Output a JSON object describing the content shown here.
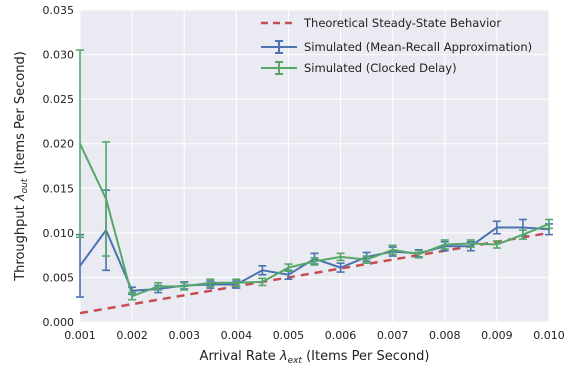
{
  "chart_data": {
    "type": "line",
    "xlabel_prefix": "Arrival Rate ",
    "xlabel_sym": "λ",
    "xlabel_sub": "ext",
    "xlabel_suffix": " (Items Per Second)",
    "ylabel_prefix": "Throughput ",
    "ylabel_sym": "λ",
    "ylabel_sub": "out",
    "ylabel_suffix": " (Items Per Second)",
    "xlim": [
      0.001,
      0.01
    ],
    "ylim": [
      0.0,
      0.035
    ],
    "xticks": [
      "0.001",
      "0.002",
      "0.003",
      "0.004",
      "0.005",
      "0.006",
      "0.007",
      "0.008",
      "0.009",
      "0.010"
    ],
    "yticks": [
      "0.000",
      "0.005",
      "0.010",
      "0.015",
      "0.020",
      "0.025",
      "0.030",
      "0.035"
    ],
    "grid": true,
    "legend_position": "top-right",
    "colors": {
      "theory": "#c44e52",
      "mean_recall": "#4c72b0",
      "clocked": "#55a868",
      "plot_bg": "#eaeaf2",
      "grid": "#ffffff"
    },
    "series": [
      {
        "name": "Theoretical Steady-State Behavior",
        "style": "dashed",
        "x": [
          0.001,
          0.01
        ],
        "y": [
          0.001,
          0.01
        ]
      },
      {
        "name": "Simulated (Mean-Recall Approximation)",
        "style": "errorbar",
        "x": [
          0.001,
          0.0015,
          0.002,
          0.0025,
          0.003,
          0.0035,
          0.004,
          0.0045,
          0.005,
          0.0055,
          0.006,
          0.0065,
          0.007,
          0.0075,
          0.008,
          0.0085,
          0.009,
          0.0095,
          0.01
        ],
        "y": [
          0.0063,
          0.0103,
          0.0035,
          0.0037,
          0.0041,
          0.0042,
          0.0042,
          0.0058,
          0.0053,
          0.0071,
          0.0061,
          0.0073,
          0.0079,
          0.0077,
          0.0085,
          0.0085,
          0.0106,
          0.0106,
          0.0104
        ],
        "err": [
          0.0035,
          0.0045,
          0.0004,
          0.0004,
          0.0004,
          0.0004,
          0.0004,
          0.0005,
          0.0005,
          0.0006,
          0.0005,
          0.0005,
          0.0005,
          0.0004,
          0.0005,
          0.0005,
          0.0007,
          0.0009,
          0.0006
        ]
      },
      {
        "name": "Simulated (Clocked Delay)",
        "style": "errorbar",
        "x": [
          0.001,
          0.0015,
          0.002,
          0.0025,
          0.003,
          0.0035,
          0.004,
          0.0045,
          0.005,
          0.0055,
          0.006,
          0.0065,
          0.007,
          0.0075,
          0.008,
          0.0085,
          0.009,
          0.0095,
          0.01
        ],
        "y": [
          0.02,
          0.0138,
          0.0029,
          0.004,
          0.004,
          0.0044,
          0.0044,
          0.0045,
          0.0061,
          0.0068,
          0.0073,
          0.007,
          0.0081,
          0.0076,
          0.0087,
          0.0088,
          0.0087,
          0.0098,
          0.011
        ],
        "err": [
          0.0105,
          0.0064,
          0.0004,
          0.0004,
          0.0004,
          0.0004,
          0.0004,
          0.0004,
          0.0004,
          0.0004,
          0.0004,
          0.0004,
          0.0005,
          0.0004,
          0.0005,
          0.0004,
          0.0004,
          0.0005,
          0.0005
        ]
      }
    ]
  }
}
